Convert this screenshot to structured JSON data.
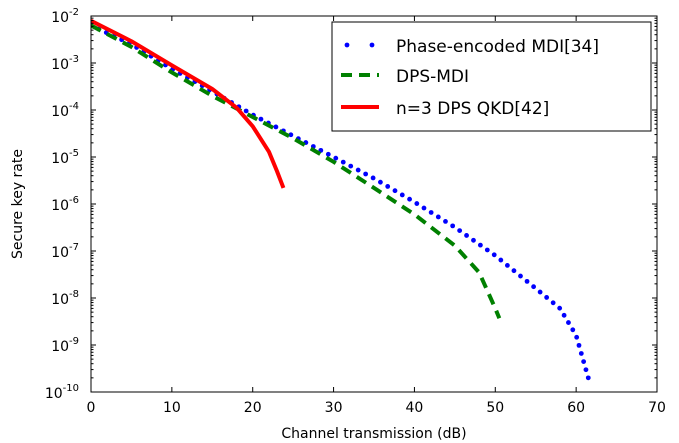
{
  "chart_data": {
    "type": "line",
    "xlabel": "Channel transmission (dB)",
    "ylabel": "Secure key rate",
    "xlim": [
      0,
      70
    ],
    "ylim_exponent": [
      -10,
      -2
    ],
    "yscale": "log",
    "x_ticks": [
      "0",
      "10",
      "20",
      "30",
      "40",
      "50",
      "60",
      "70"
    ],
    "y_ticks": [
      {
        "base": "10",
        "exp": "-10"
      },
      {
        "base": "10",
        "exp": "-9"
      },
      {
        "base": "10",
        "exp": "-8"
      },
      {
        "base": "10",
        "exp": "-7"
      },
      {
        "base": "10",
        "exp": "-6"
      },
      {
        "base": "10",
        "exp": "-5"
      },
      {
        "base": "10",
        "exp": "-4"
      },
      {
        "base": "10",
        "exp": "-3"
      },
      {
        "base": "10",
        "exp": "-2"
      }
    ],
    "grid": false,
    "legend_position": "top-right",
    "series": [
      {
        "name": "Phase-encoded MDI[34]",
        "style": "dotted-markers",
        "color": "#0000ff",
        "points": [
          [
            0,
            0.0063
          ],
          [
            5,
            0.0025
          ],
          [
            10,
            0.00075
          ],
          [
            15,
            0.00025
          ],
          [
            20,
            7.9e-05
          ],
          [
            25,
            2.8e-05
          ],
          [
            30,
            1e-05
          ],
          [
            35,
            3.5e-06
          ],
          [
            40,
            1.1e-06
          ],
          [
            45,
            3.2e-07
          ],
          [
            50,
            8e-08
          ],
          [
            55,
            1.6e-08
          ],
          [
            58,
            6e-09
          ],
          [
            60,
            1.6e-09
          ],
          [
            61.5,
            2e-10
          ]
        ]
      },
      {
        "name": "DPS-MDI",
        "style": "dashed",
        "color": "#008000",
        "points": [
          [
            0,
            0.0063
          ],
          [
            5,
            0.0022
          ],
          [
            10,
            0.00063
          ],
          [
            15,
            0.0002
          ],
          [
            20,
            7.1e-05
          ],
          [
            25,
            2.5e-05
          ],
          [
            30,
            7.9e-06
          ],
          [
            35,
            2.2e-06
          ],
          [
            40,
            6e-07
          ],
          [
            45,
            1.3e-07
          ],
          [
            48,
            3.5e-08
          ],
          [
            50,
            6e-09
          ],
          [
            50.5,
            3.7e-09
          ]
        ]
      },
      {
        "name": "n=3 DPS QKD[42]",
        "style": "solid",
        "color": "#ff0000",
        "points": [
          [
            0,
            0.0079
          ],
          [
            5,
            0.0029
          ],
          [
            10,
            0.00089
          ],
          [
            15,
            0.00028
          ],
          [
            18,
            0.000112
          ],
          [
            20,
            4.5e-05
          ],
          [
            22,
            1.3e-05
          ],
          [
            23,
            5e-06
          ],
          [
            23.8,
            2.2e-06
          ]
        ]
      }
    ]
  }
}
